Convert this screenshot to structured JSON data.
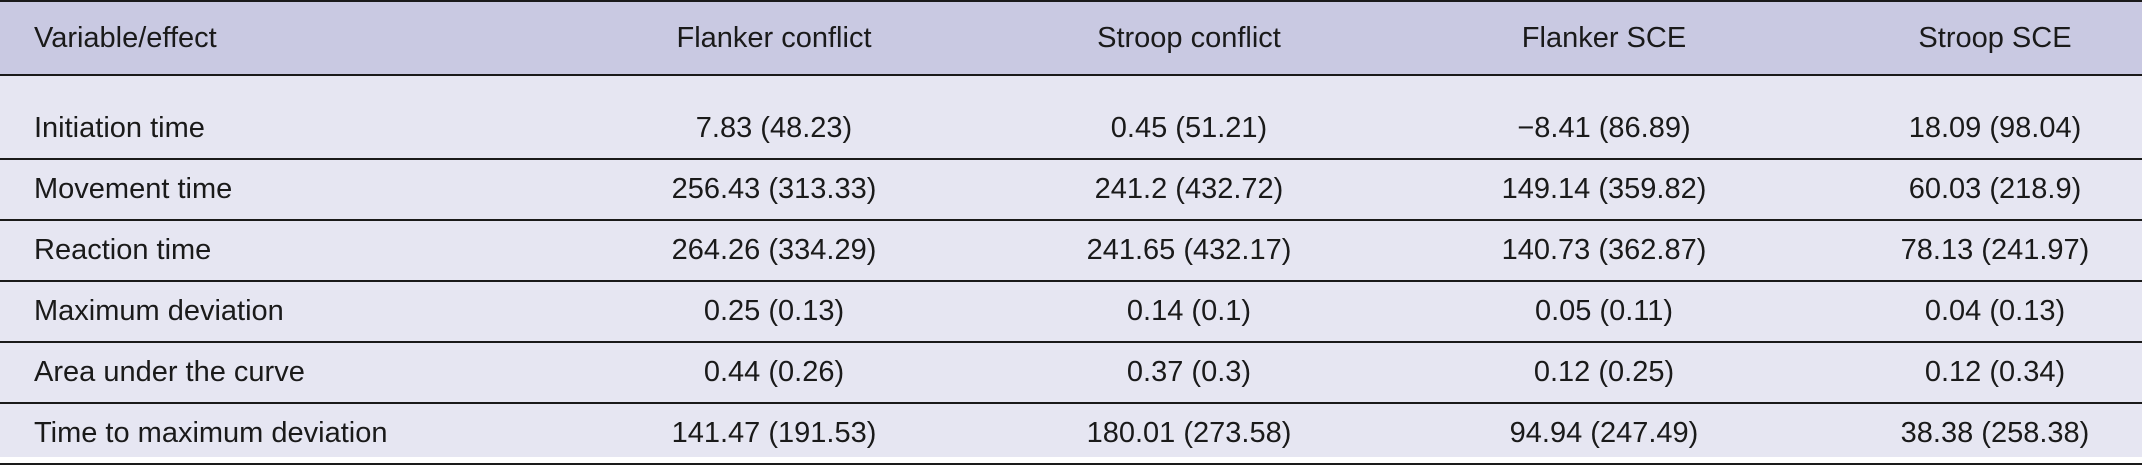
{
  "table": {
    "headers": [
      "Variable/effect",
      "Flanker conflict",
      "Stroop conflict",
      "Flanker SCE",
      "Stroop SCE"
    ],
    "rows": [
      [
        "Initiation time",
        "7.83 (48.23)",
        "0.45 (51.21)",
        "−8.41 (86.89)",
        "18.09 (98.04)"
      ],
      [
        "Movement time",
        "256.43 (313.33)",
        "241.2 (432.72)",
        "149.14 (359.82)",
        "60.03 (218.9)"
      ],
      [
        "Reaction time",
        "264.26 (334.29)",
        "241.65 (432.17)",
        "140.73 (362.87)",
        "78.13 (241.97)"
      ],
      [
        "Maximum deviation",
        "0.25 (0.13)",
        "0.14 (0.1)",
        "0.05 (0.11)",
        "0.04 (0.13)"
      ],
      [
        "Area under the curve",
        "0.44 (0.26)",
        "0.37 (0.3)",
        "0.12 (0.25)",
        "0.12 (0.34)"
      ],
      [
        "Time to maximum deviation",
        "141.47 (191.53)",
        "180.01 (273.58)",
        "94.94 (247.49)",
        "38.38 (258.38)"
      ]
    ]
  }
}
